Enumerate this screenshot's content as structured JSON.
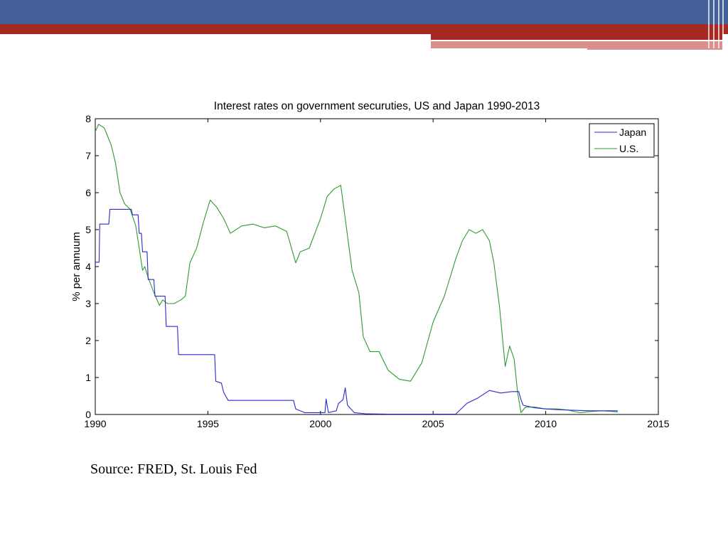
{
  "slide": {
    "banner_colors": {
      "blue": "#44609a",
      "red": "#a62a22",
      "pink": "#d9908c"
    },
    "source_text": "Source: FRED, St. Louis Fed"
  },
  "chart_data": {
    "type": "line",
    "title": "Interest rates on government securuties, US and Japan 1990-2013",
    "xlabel": "",
    "ylabel": "% per annuum",
    "xlim": [
      1990,
      2015
    ],
    "ylim": [
      0,
      8
    ],
    "xticks": [
      1990,
      1995,
      2000,
      2005,
      2010,
      2015
    ],
    "yticks": [
      0,
      1,
      2,
      3,
      4,
      5,
      6,
      7,
      8
    ],
    "grid": false,
    "legend_position": "top-right",
    "series": [
      {
        "name": "Japan",
        "color": "#2a2ad0",
        "points": [
          [
            1990.0,
            4.12
          ],
          [
            1990.17,
            4.12
          ],
          [
            1990.2,
            5.15
          ],
          [
            1990.6,
            5.15
          ],
          [
            1990.65,
            5.55
          ],
          [
            1991.6,
            5.55
          ],
          [
            1991.65,
            5.4
          ],
          [
            1991.9,
            5.4
          ],
          [
            1991.95,
            4.9
          ],
          [
            1992.05,
            4.9
          ],
          [
            1992.1,
            4.4
          ],
          [
            1992.3,
            4.4
          ],
          [
            1992.35,
            3.65
          ],
          [
            1992.6,
            3.65
          ],
          [
            1992.65,
            3.2
          ],
          [
            1993.1,
            3.2
          ],
          [
            1993.15,
            2.38
          ],
          [
            1993.65,
            2.38
          ],
          [
            1993.7,
            1.62
          ],
          [
            1995.3,
            1.62
          ],
          [
            1995.35,
            0.9
          ],
          [
            1995.6,
            0.85
          ],
          [
            1995.7,
            0.6
          ],
          [
            1995.9,
            0.38
          ],
          [
            1998.8,
            0.38
          ],
          [
            1998.9,
            0.15
          ],
          [
            1999.3,
            0.05
          ],
          [
            2000.2,
            0.05
          ],
          [
            2000.25,
            0.42
          ],
          [
            2000.35,
            0.05
          ],
          [
            2000.7,
            0.1
          ],
          [
            2000.8,
            0.3
          ],
          [
            2001.0,
            0.4
          ],
          [
            2001.1,
            0.72
          ],
          [
            2001.2,
            0.25
          ],
          [
            2001.5,
            0.05
          ],
          [
            2002.0,
            0.02
          ],
          [
            2003.0,
            0.01
          ],
          [
            2006.0,
            0.01
          ],
          [
            2006.5,
            0.3
          ],
          [
            2007.0,
            0.45
          ],
          [
            2007.5,
            0.65
          ],
          [
            2008.0,
            0.58
          ],
          [
            2008.5,
            0.62
          ],
          [
            2008.8,
            0.62
          ],
          [
            2008.9,
            0.4
          ],
          [
            2009.0,
            0.25
          ],
          [
            2009.5,
            0.18
          ],
          [
            2010.0,
            0.15
          ],
          [
            2010.5,
            0.13
          ],
          [
            2011.0,
            0.12
          ],
          [
            2012.0,
            0.1
          ],
          [
            2013.0,
            0.1
          ],
          [
            2013.2,
            0.1
          ]
        ]
      },
      {
        "name": "U.S.",
        "color": "#2e9a2e",
        "points": [
          [
            1990.0,
            7.65
          ],
          [
            1990.15,
            7.85
          ],
          [
            1990.4,
            7.75
          ],
          [
            1990.7,
            7.3
          ],
          [
            1990.9,
            6.8
          ],
          [
            1991.1,
            6.0
          ],
          [
            1991.3,
            5.7
          ],
          [
            1991.55,
            5.55
          ],
          [
            1991.8,
            5.1
          ],
          [
            1991.95,
            4.5
          ],
          [
            1992.1,
            3.9
          ],
          [
            1992.2,
            4.0
          ],
          [
            1992.35,
            3.7
          ],
          [
            1992.6,
            3.3
          ],
          [
            1992.85,
            2.95
          ],
          [
            1993.0,
            3.1
          ],
          [
            1993.2,
            3.0
          ],
          [
            1993.5,
            3.0
          ],
          [
            1993.8,
            3.1
          ],
          [
            1994.0,
            3.2
          ],
          [
            1994.2,
            4.1
          ],
          [
            1994.5,
            4.5
          ],
          [
            1994.8,
            5.2
          ],
          [
            1995.1,
            5.8
          ],
          [
            1995.4,
            5.6
          ],
          [
            1995.7,
            5.3
          ],
          [
            1996.0,
            4.9
          ],
          [
            1996.5,
            5.1
          ],
          [
            1997.0,
            5.15
          ],
          [
            1997.5,
            5.05
          ],
          [
            1998.0,
            5.1
          ],
          [
            1998.5,
            4.95
          ],
          [
            1998.9,
            4.1
          ],
          [
            1999.1,
            4.4
          ],
          [
            1999.5,
            4.5
          ],
          [
            2000.0,
            5.3
          ],
          [
            2000.3,
            5.9
          ],
          [
            2000.6,
            6.1
          ],
          [
            2000.9,
            6.2
          ],
          [
            2001.1,
            5.3
          ],
          [
            2001.4,
            3.9
          ],
          [
            2001.7,
            3.3
          ],
          [
            2001.9,
            2.1
          ],
          [
            2002.2,
            1.7
          ],
          [
            2002.6,
            1.7
          ],
          [
            2003.0,
            1.2
          ],
          [
            2003.5,
            0.95
          ],
          [
            2004.0,
            0.9
          ],
          [
            2004.5,
            1.4
          ],
          [
            2005.0,
            2.5
          ],
          [
            2005.5,
            3.2
          ],
          [
            2006.0,
            4.2
          ],
          [
            2006.3,
            4.7
          ],
          [
            2006.6,
            5.0
          ],
          [
            2006.9,
            4.9
          ],
          [
            2007.2,
            5.0
          ],
          [
            2007.5,
            4.7
          ],
          [
            2007.7,
            4.1
          ],
          [
            2007.95,
            2.9
          ],
          [
            2008.2,
            1.3
          ],
          [
            2008.4,
            1.85
          ],
          [
            2008.6,
            1.5
          ],
          [
            2008.75,
            0.6
          ],
          [
            2008.9,
            0.05
          ],
          [
            2009.1,
            0.2
          ],
          [
            2009.5,
            0.2
          ],
          [
            2010.0,
            0.15
          ],
          [
            2010.5,
            0.15
          ],
          [
            2011.0,
            0.12
          ],
          [
            2011.5,
            0.05
          ],
          [
            2012.0,
            0.08
          ],
          [
            2012.5,
            0.1
          ],
          [
            2013.0,
            0.08
          ],
          [
            2013.2,
            0.07
          ]
        ]
      }
    ]
  }
}
